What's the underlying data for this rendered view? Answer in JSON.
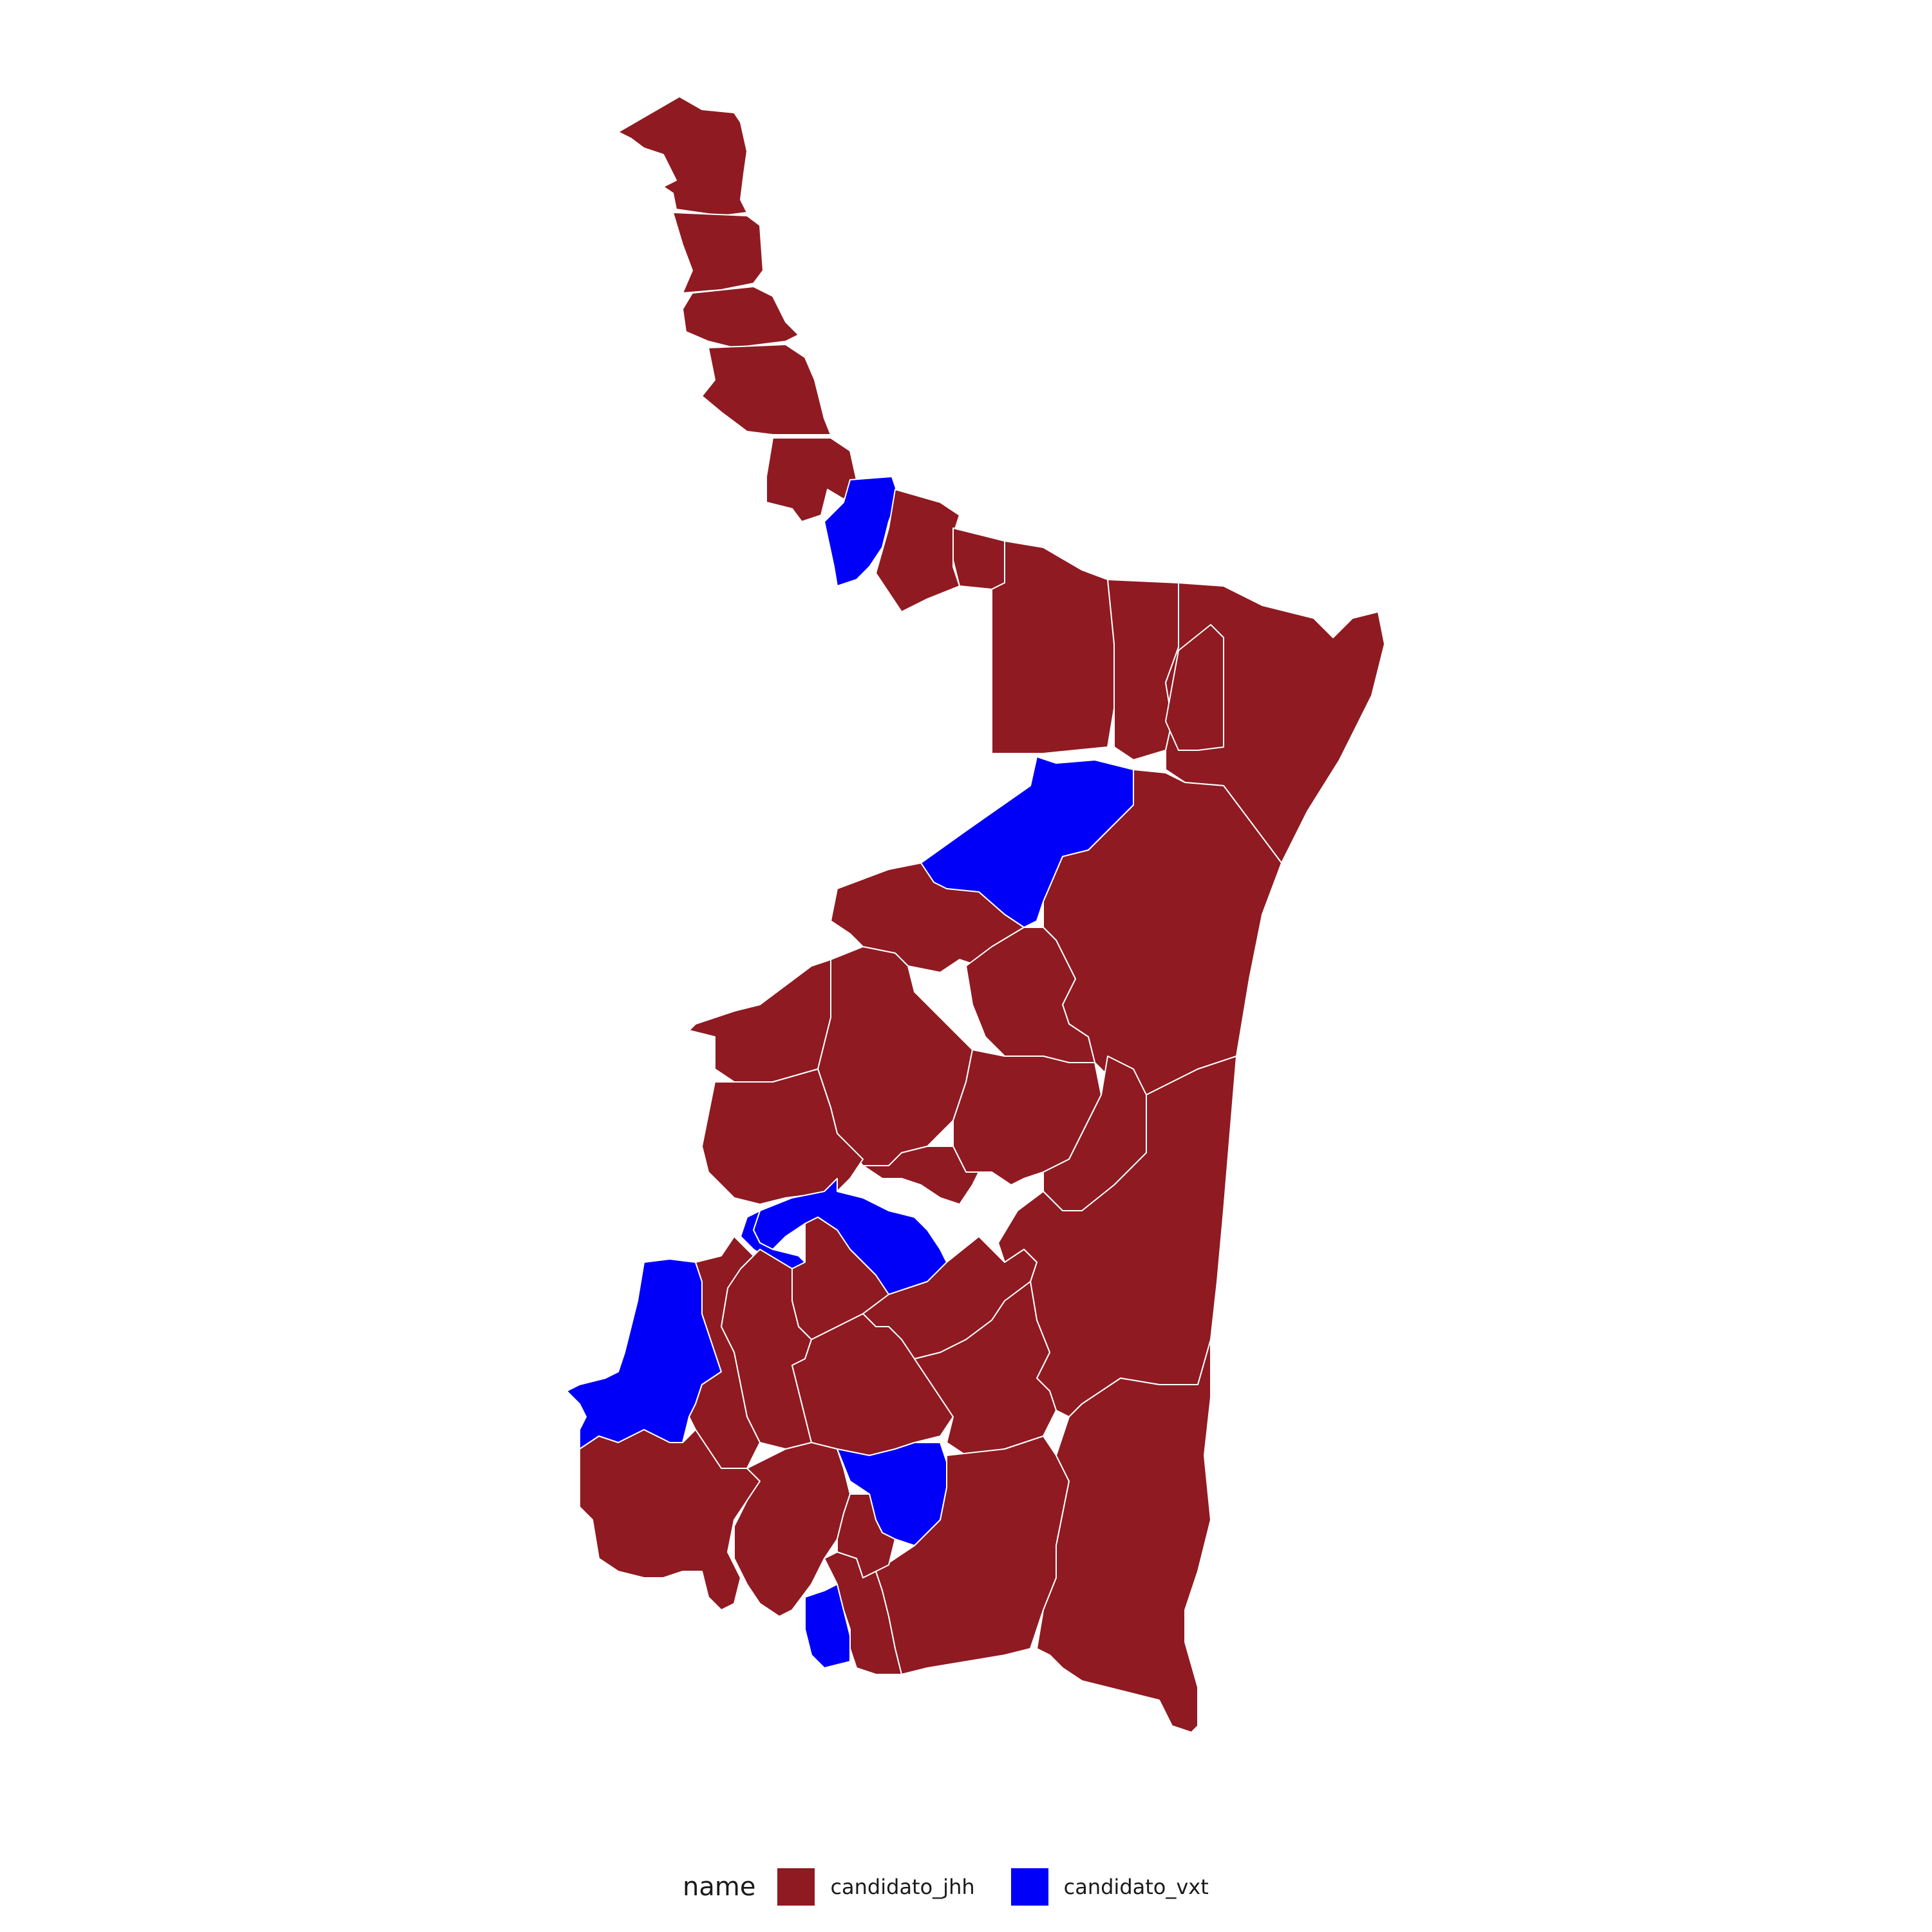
{
  "legend": {
    "title": "name",
    "items": [
      {
        "label": "candidato_jhh",
        "color": "#8f1a21"
      },
      {
        "label": "candidato_vxt",
        "color": "#0000fa"
      }
    ]
  },
  "colors": {
    "candidato_jhh": "#8f1a21",
    "candidato_vxt": "#0000fa",
    "border": "#ffffff",
    "background": "#ffffff"
  },
  "regions": [
    {
      "id": "n1",
      "winner": "candidato_jhh"
    },
    {
      "id": "n2",
      "winner": "candidato_jhh"
    },
    {
      "id": "n3",
      "winner": "candidato_jhh"
    },
    {
      "id": "n4",
      "winner": "candidato_jhh"
    },
    {
      "id": "n5",
      "winner": "candidato_vxt"
    },
    {
      "id": "n6",
      "winner": "candidato_jhh"
    },
    {
      "id": "n7",
      "winner": "candidato_jhh"
    },
    {
      "id": "e1",
      "winner": "candidato_jhh"
    },
    {
      "id": "e2",
      "winner": "candidato_jhh"
    },
    {
      "id": "e3",
      "winner": "candidato_jhh"
    },
    {
      "id": "e4",
      "winner": "candidato_jhh"
    },
    {
      "id": "c1",
      "winner": "candidato_vxt"
    },
    {
      "id": "c2",
      "winner": "candidato_jhh"
    },
    {
      "id": "c3",
      "winner": "candidato_jhh"
    },
    {
      "id": "c4",
      "winner": "candidato_jhh"
    },
    {
      "id": "c5",
      "winner": "candidato_jhh"
    },
    {
      "id": "c6",
      "winner": "candidato_jhh"
    },
    {
      "id": "c7",
      "winner": "candidato_jhh"
    },
    {
      "id": "c8",
      "winner": "candidato_jhh"
    },
    {
      "id": "c9",
      "winner": "candidato_jhh"
    },
    {
      "id": "c10",
      "winner": "candidato_jhh"
    },
    {
      "id": "c11",
      "winner": "candidato_vxt"
    },
    {
      "id": "s1",
      "winner": "candidato_jhh"
    },
    {
      "id": "s2",
      "winner": "candidato_vxt"
    },
    {
      "id": "s3",
      "winner": "candidato_jhh"
    },
    {
      "id": "s4",
      "winner": "candidato_jhh"
    },
    {
      "id": "s5",
      "winner": "candidato_jhh"
    },
    {
      "id": "s6",
      "winner": "candidato_jhh"
    },
    {
      "id": "s7",
      "winner": "candidato_vxt"
    },
    {
      "id": "s8",
      "winner": "candidato_jhh"
    },
    {
      "id": "s9",
      "winner": "candidato_jhh"
    },
    {
      "id": "s10",
      "winner": "candidato_jhh"
    },
    {
      "id": "s11",
      "winner": "candidato_vxt"
    },
    {
      "id": "s12",
      "winner": "candidato_jhh"
    },
    {
      "id": "s13",
      "winner": "candidato_jhh"
    },
    {
      "id": "s14",
      "winner": "candidato_jhh"
    }
  ]
}
